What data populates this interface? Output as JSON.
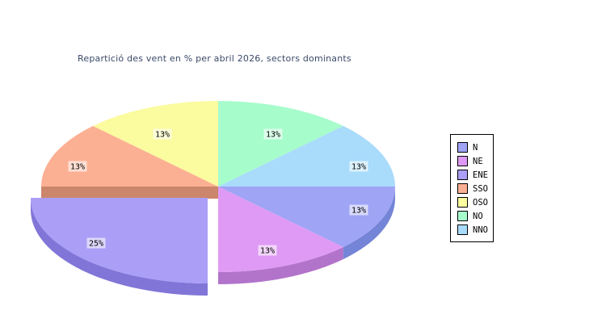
{
  "title": {
    "text": "Repartició des vent en % per abril 2026, sectors dominants",
    "color": "#3b4a68"
  },
  "chart_data": {
    "type": "pie",
    "style": "3d-exploded-pie",
    "title": "Repartició des vent en % per abril 2026, sectors dominants",
    "unit": "%",
    "categories": [
      "N",
      "NE",
      "ENE",
      "SSO",
      "OSO",
      "NO",
      "NNO"
    ],
    "values": [
      12.5,
      12.5,
      25,
      12.5,
      12.5,
      12.5,
      12.5
    ],
    "slice_labels": [
      "13%",
      "13%",
      "25%",
      "13%",
      "13%",
      "13%",
      "13%"
    ],
    "colors": [
      "#9fa4f5",
      "#de9af4",
      "#ab9ef6",
      "#fcb093",
      "#fbfb9f",
      "#a6fccb",
      "#a9dbfb"
    ],
    "side_colors": [
      "#7484d6",
      "#b273cb",
      "#8175d8",
      "#cb866c",
      "#c9c97f",
      "#85caa2",
      "#87afc9"
    ],
    "exploded_slice": "ENE",
    "direction": "clockwise",
    "start_angle_deg": 0,
    "legend_position": "right",
    "legend_entries": [
      "N",
      "NE",
      "ENE",
      "SSO",
      "OSO",
      "NO",
      "NNO"
    ],
    "label_background": "#ffffff"
  }
}
